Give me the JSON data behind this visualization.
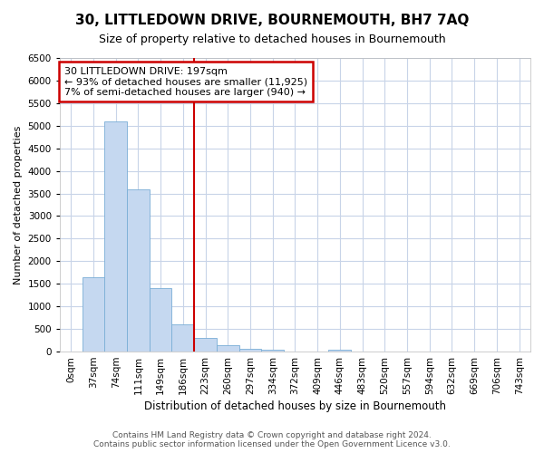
{
  "title": "30, LITTLEDOWN DRIVE, BOURNEMOUTH, BH7 7AQ",
  "subtitle": "Size of property relative to detached houses in Bournemouth",
  "xlabel": "Distribution of detached houses by size in Bournemouth",
  "ylabel": "Number of detached properties",
  "bar_labels": [
    "0sqm",
    "37sqm",
    "74sqm",
    "111sqm",
    "149sqm",
    "186sqm",
    "223sqm",
    "260sqm",
    "297sqm",
    "334sqm",
    "372sqm",
    "409sqm",
    "446sqm",
    "483sqm",
    "520sqm",
    "557sqm",
    "594sqm",
    "632sqm",
    "669sqm",
    "706sqm",
    "743sqm"
  ],
  "bar_values": [
    0,
    1650,
    5100,
    3600,
    1400,
    600,
    300,
    140,
    60,
    50,
    0,
    0,
    50,
    0,
    0,
    0,
    0,
    0,
    0,
    0,
    0
  ],
  "bar_color": "#c5d8f0",
  "bar_edge_color": "#7aaed6",
  "property_line_label": "30 LITTLEDOWN DRIVE: 197sqm",
  "annotation_line1": "← 93% of detached houses are smaller (11,925)",
  "annotation_line2": "7% of semi-detached houses are larger (940) →",
  "annotation_box_color": "#ffffff",
  "annotation_box_edge": "#cc0000",
  "vline_color": "#cc0000",
  "vline_x_index": 5.5,
  "ylim": [
    0,
    6500
  ],
  "ytick_step": 500,
  "footer_line1": "Contains HM Land Registry data © Crown copyright and database right 2024.",
  "footer_line2": "Contains public sector information licensed under the Open Government Licence v3.0.",
  "background_color": "#ffffff",
  "grid_color": "#c8d4e8",
  "title_fontsize": 11,
  "subtitle_fontsize": 9,
  "axis_label_fontsize": 8,
  "tick_fontsize": 7.5,
  "footer_fontsize": 6.5
}
